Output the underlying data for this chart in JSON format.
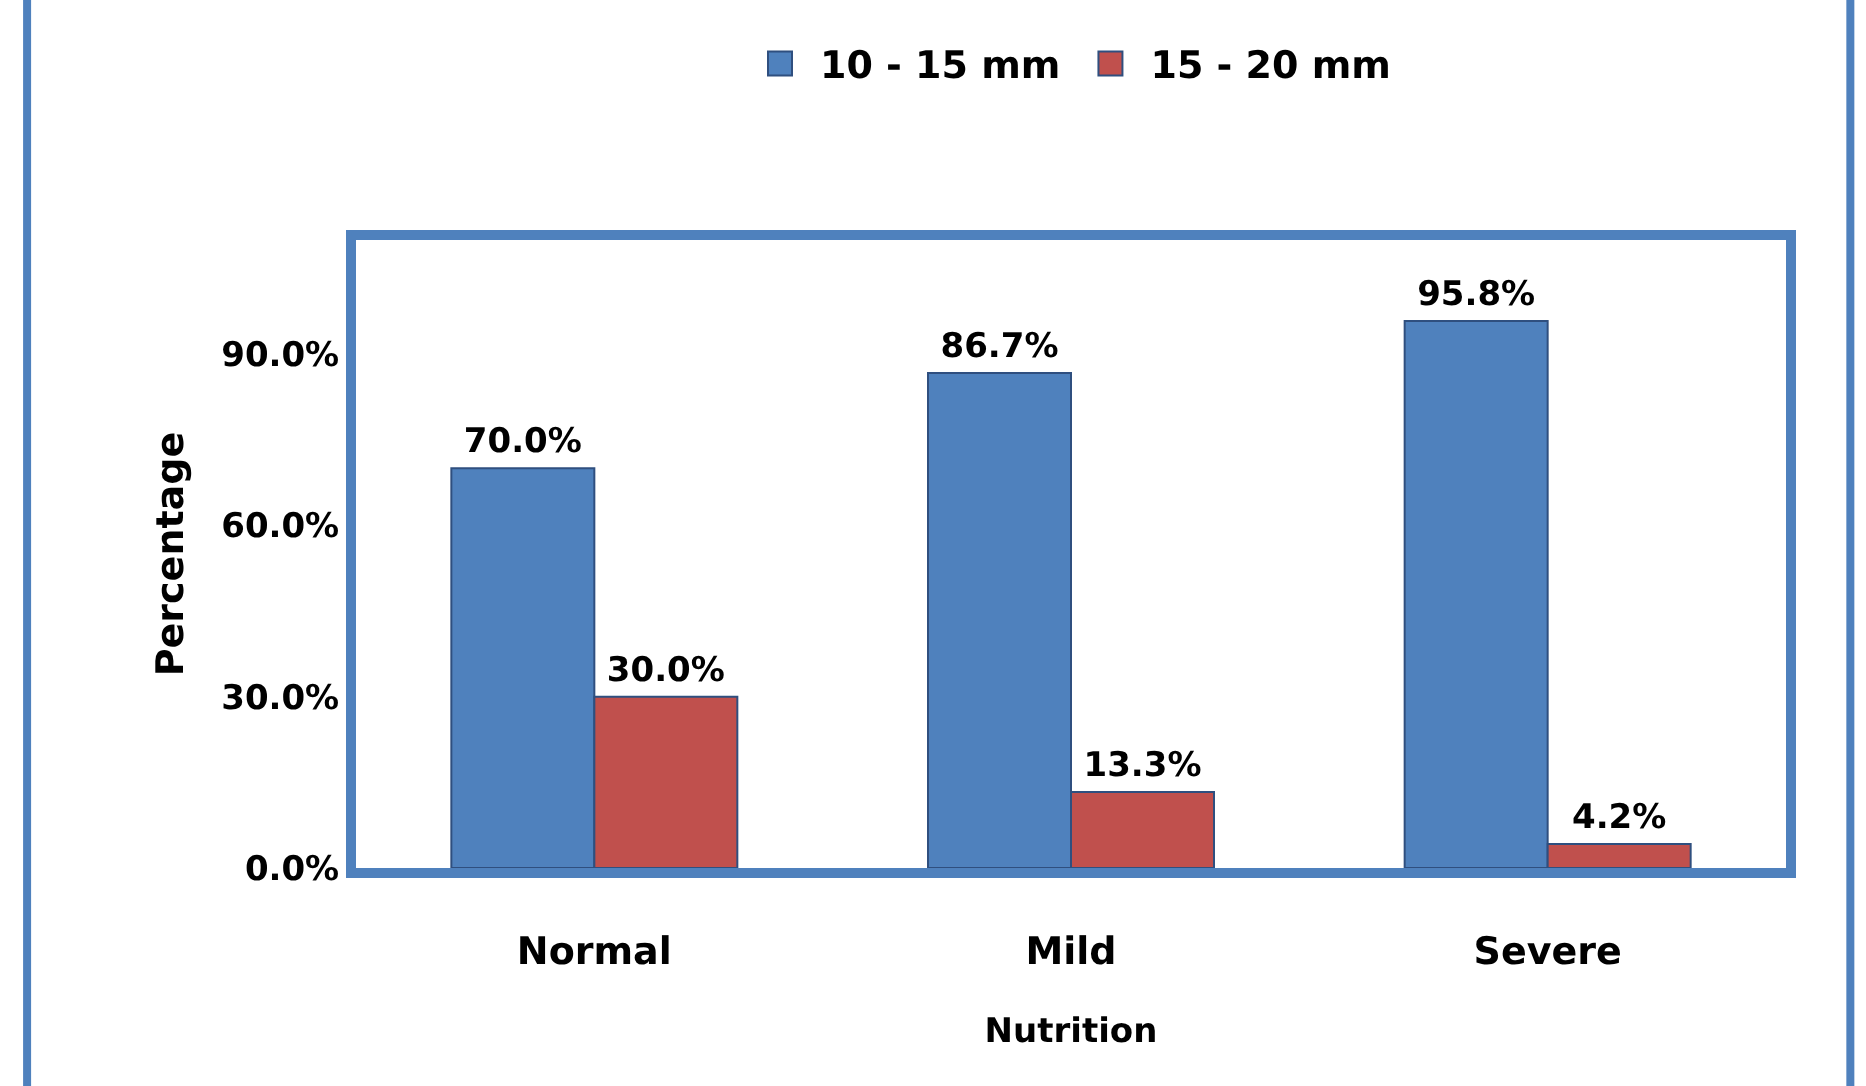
{
  "chart_data": {
    "type": "bar",
    "xlabel": "Nutrition",
    "ylabel": "Percentage",
    "categories": [
      "Normal",
      "Mild",
      "Severe"
    ],
    "series": [
      {
        "name": "10 - 15 mm",
        "color": "#4f81bd",
        "values": [
          70.0,
          86.7,
          95.8
        ],
        "value_labels": [
          "70.0%",
          "86.7%",
          "95.8%"
        ]
      },
      {
        "name": "15 - 20 mm",
        "color": "#c0504d",
        "values": [
          30.0,
          13.3,
          4.2
        ],
        "value_labels": [
          "30.0%",
          "13.3%",
          "4.2%"
        ]
      }
    ],
    "ylim": [
      0,
      110
    ],
    "yticks": [
      {
        "value": 0,
        "label": "0.0%"
      },
      {
        "value": 30,
        "label": "30.0%"
      },
      {
        "value": 60,
        "label": "60.0%"
      },
      {
        "value": 90,
        "label": "90.0%"
      }
    ],
    "legend": "top"
  }
}
